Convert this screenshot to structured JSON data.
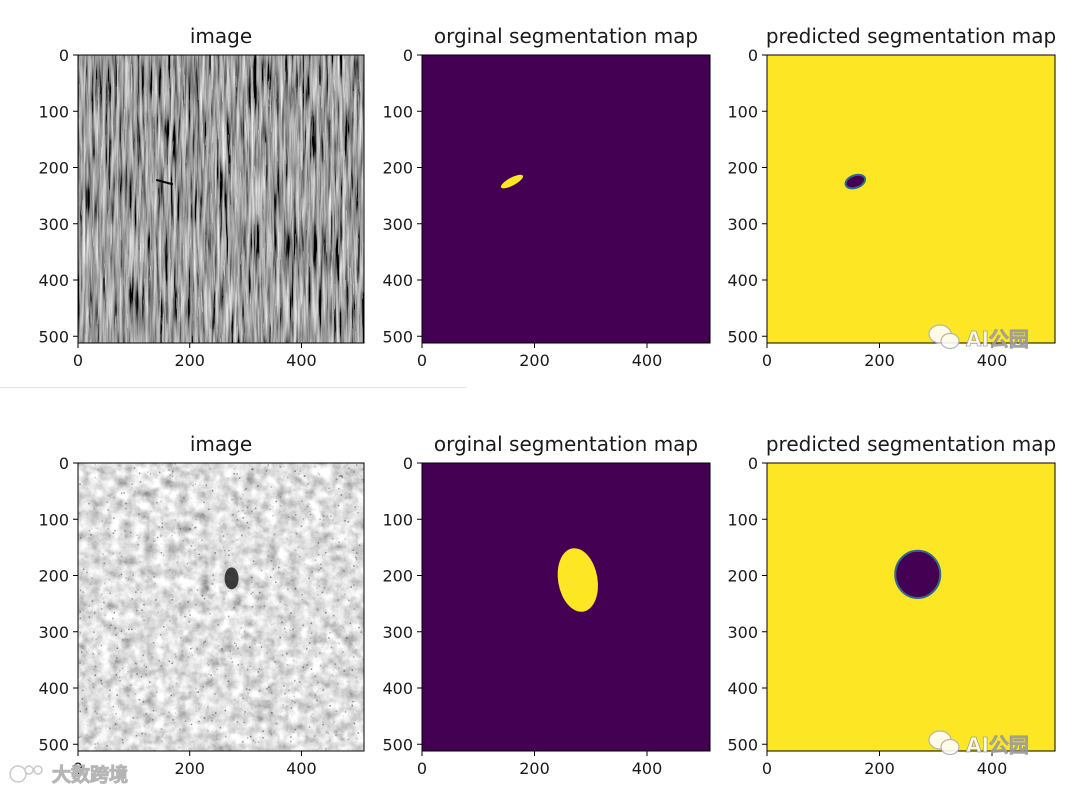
{
  "colors": {
    "background": "#440154",
    "foreground": "#fde725",
    "axis": "#000000",
    "text": "#1a1a1a"
  },
  "chart_data": [
    {
      "type": "heatmap",
      "panel": "image",
      "title": "image",
      "texture": "streaks",
      "xlim": [
        0,
        512
      ],
      "ylim": [
        0,
        512
      ],
      "xticks": [
        0,
        200,
        400
      ],
      "yticks": [
        0,
        100,
        200,
        300,
        400,
        500
      ]
    },
    {
      "type": "heatmap",
      "panel": "mask",
      "title": "orginal segmentation map",
      "xlim": [
        0,
        512
      ],
      "ylim": [
        0,
        512
      ],
      "xticks": [
        0,
        200,
        400
      ],
      "yticks": [
        0,
        100,
        200,
        300,
        400,
        500
      ],
      "region": {
        "center_x": 160,
        "center_y": 225,
        "radius_x": 22,
        "radius_y": 7,
        "angle": -28
      }
    },
    {
      "type": "heatmap",
      "panel": "pred",
      "title": "predicted segmentation map",
      "xlim": [
        0,
        512
      ],
      "ylim": [
        0,
        512
      ],
      "xticks": [
        0,
        200,
        400
      ],
      "yticks": [
        0,
        100,
        200,
        300,
        400,
        500
      ],
      "region": {
        "center_x": 157,
        "center_y": 225,
        "radius_x": 18,
        "radius_y": 11,
        "angle": -20
      }
    },
    {
      "type": "heatmap",
      "panel": "image",
      "title": "image",
      "texture": "mottled",
      "xlim": [
        0,
        512
      ],
      "ylim": [
        0,
        512
      ],
      "xticks": [
        0,
        200,
        400
      ],
      "yticks": [
        0,
        100,
        200,
        300,
        400,
        500
      ]
    },
    {
      "type": "heatmap",
      "panel": "mask",
      "title": "orginal segmentation map",
      "xlim": [
        0,
        512
      ],
      "ylim": [
        0,
        512
      ],
      "xticks": [
        0,
        200,
        400
      ],
      "yticks": [
        0,
        100,
        200,
        300,
        400,
        500
      ],
      "region": {
        "center_x": 277,
        "center_y": 208,
        "radius_x": 35,
        "radius_y": 57,
        "angle": -10
      }
    },
    {
      "type": "heatmap",
      "panel": "pred",
      "title": "predicted segmentation map",
      "xlim": [
        0,
        512
      ],
      "ylim": [
        0,
        512
      ],
      "xticks": [
        0,
        200,
        400
      ],
      "yticks": [
        0,
        100,
        200,
        300,
        400,
        500
      ],
      "region": {
        "center_x": 268,
        "center_y": 198,
        "radius_x": 40,
        "radius_y": 42,
        "angle": 0
      }
    }
  ],
  "watermarks": {
    "wechat": "AI公园",
    "source": "大数跨境"
  }
}
